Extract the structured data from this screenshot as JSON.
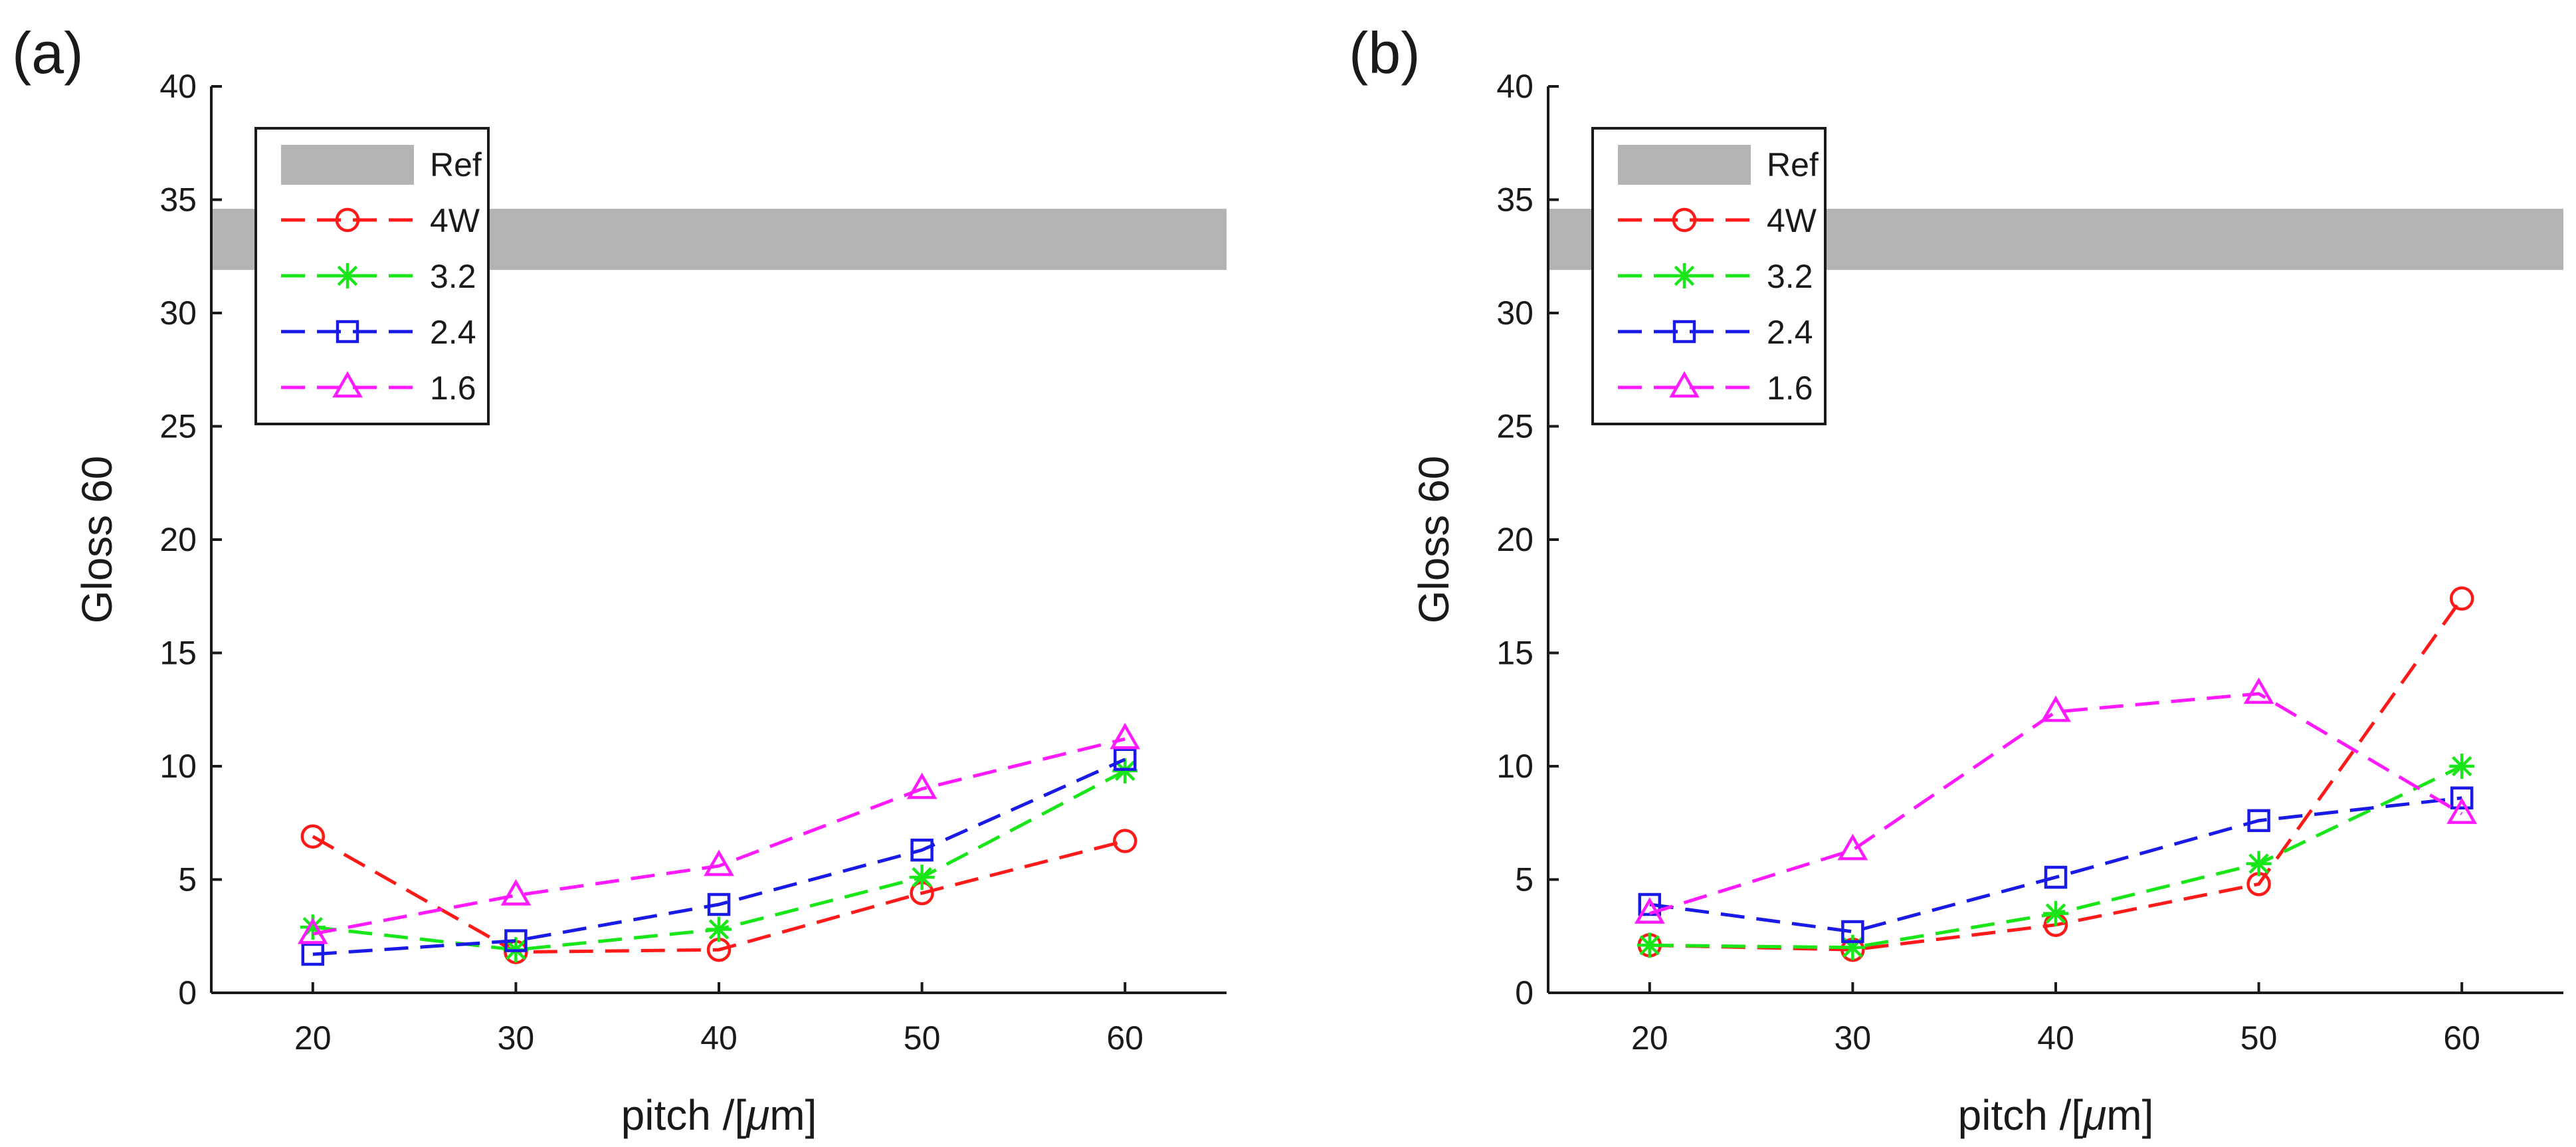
{
  "chart_data": [
    {
      "panel_label": "(a)",
      "type": "line",
      "xlabel": "pitch /[",
      "xlabel_mu": "μ",
      "xlabel_unit": "m]",
      "ylabel": "Gloss 60",
      "xlim": [
        15,
        65
      ],
      "ylim": [
        0,
        40
      ],
      "xticks": [
        20,
        30,
        40,
        50,
        60
      ],
      "yticks": [
        0,
        5,
        10,
        15,
        20,
        25,
        30,
        35,
        40
      ],
      "reference_band": {
        "name": "Ref",
        "y_min": 31.9,
        "y_max": 34.6,
        "color": "#b3b3b3"
      },
      "legend_position": "top-left",
      "x": [
        20,
        30,
        40,
        50,
        60
      ],
      "series": [
        {
          "name": "4W",
          "color": "#ff1a1a",
          "marker": "circle",
          "values": [
            6.9,
            1.8,
            1.9,
            4.4,
            6.7
          ]
        },
        {
          "name": "3.2",
          "color": "#19e619",
          "marker": "asterisk",
          "values": [
            2.9,
            1.9,
            2.8,
            5.1,
            9.8
          ]
        },
        {
          "name": "2.4",
          "color": "#1a1ae6",
          "marker": "square",
          "values": [
            1.7,
            2.3,
            3.9,
            6.3,
            10.3
          ]
        },
        {
          "name": "1.6",
          "color": "#ff1aff",
          "marker": "triangle",
          "values": [
            2.6,
            4.3,
            5.6,
            9.0,
            11.2
          ]
        }
      ]
    },
    {
      "panel_label": "(b)",
      "type": "line",
      "xlabel": "pitch /[",
      "xlabel_mu": "μ",
      "xlabel_unit": "m]",
      "ylabel": "Gloss 60",
      "xlim": [
        15,
        65
      ],
      "ylim": [
        0,
        40
      ],
      "xticks": [
        20,
        30,
        40,
        50,
        60
      ],
      "yticks": [
        0,
        5,
        10,
        15,
        20,
        25,
        30,
        35,
        40
      ],
      "reference_band": {
        "name": "Ref",
        "y_min": 31.9,
        "y_max": 34.6,
        "color": "#b3b3b3"
      },
      "legend_position": "top-left",
      "x": [
        20,
        30,
        40,
        50,
        60
      ],
      "series": [
        {
          "name": "4W",
          "color": "#ff1a1a",
          "marker": "circle",
          "values": [
            2.1,
            1.9,
            3.0,
            4.8,
            17.4
          ]
        },
        {
          "name": "3.2",
          "color": "#19e619",
          "marker": "asterisk",
          "values": [
            2.1,
            2.0,
            3.5,
            5.7,
            10.0
          ]
        },
        {
          "name": "2.4",
          "color": "#1a1ae6",
          "marker": "square",
          "values": [
            3.9,
            2.7,
            5.1,
            7.6,
            8.6
          ]
        },
        {
          "name": "1.6",
          "color": "#ff1aff",
          "marker": "triangle",
          "values": [
            3.5,
            6.3,
            12.4,
            13.2,
            7.9
          ]
        }
      ]
    }
  ]
}
